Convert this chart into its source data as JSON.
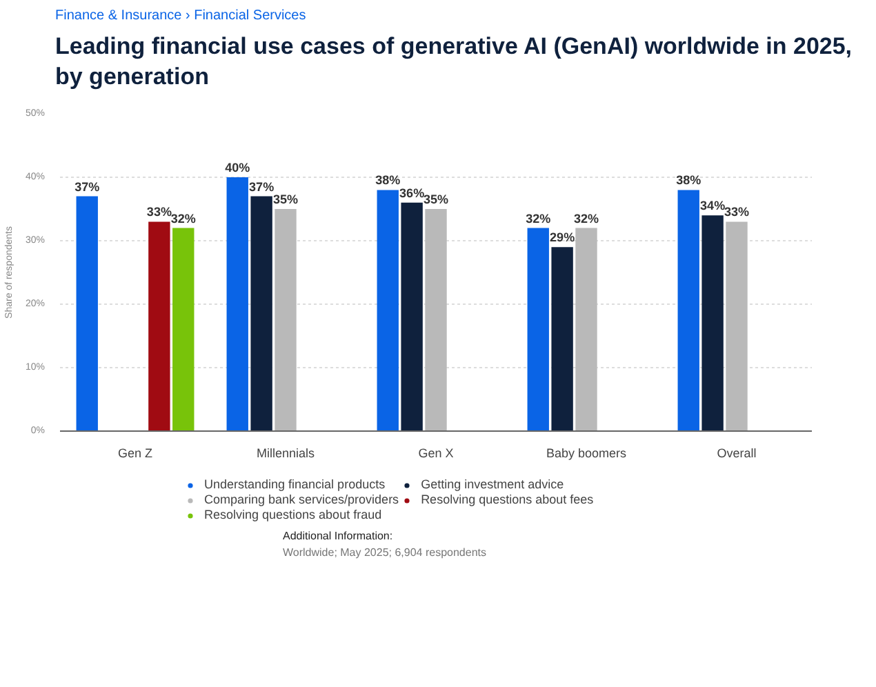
{
  "chart_data": {
    "type": "bar",
    "title": "Leading financial use cases of generative AI (GenAI) worldwide in 2025, by generation",
    "ylabel": "Share of respondents",
    "categories": [
      "Gen Z",
      "Millennials",
      "Gen X",
      "Baby boomers",
      "Overall"
    ],
    "series": [
      {
        "name": "Understanding financial products",
        "color": "#0a64e6",
        "values": [
          37,
          40,
          38,
          32,
          38
        ],
        "value_labels": [
          "37%",
          "40%",
          "38%",
          "32%",
          "38%"
        ]
      },
      {
        "name": "Getting investment advice",
        "color": "#0f213d",
        "values": [
          null,
          37,
          36,
          29,
          34
        ],
        "value_labels": [
          null,
          "37%",
          "36%",
          "29%",
          "34%"
        ]
      },
      {
        "name": "Comparing bank services/providers",
        "color": "#b9b9b9",
        "values": [
          null,
          35,
          35,
          32,
          33
        ],
        "value_labels": [
          null,
          "35%",
          "35%",
          "32%",
          "33%"
        ]
      },
      {
        "name": "Resolving questions about fees",
        "color": "#a00b12",
        "values": [
          33,
          null,
          null,
          null,
          null
        ],
        "value_labels": [
          "33%",
          null,
          null,
          null,
          null
        ]
      },
      {
        "name": "Resolving questions about fraud",
        "color": "#78c30a",
        "values": [
          32,
          null,
          null,
          null,
          null
        ],
        "value_labels": [
          "32%",
          null,
          null,
          null,
          null
        ]
      }
    ],
    "ylim": [
      0,
      50
    ],
    "yticks": [
      {
        "value": 0,
        "label": "0%"
      },
      {
        "value": 10,
        "label": "10%"
      },
      {
        "value": 20,
        "label": "20%"
      },
      {
        "value": 30,
        "label": "30%"
      },
      {
        "value": 40,
        "label": "40%"
      },
      {
        "value": 50,
        "label": "50%"
      }
    ],
    "grid": "y",
    "legend": "bottom",
    "annotations": [
      "Finance & Insurance › Financial Services",
      "Additional Information:",
      "Worldwide; May 2025; 6,904 respondents"
    ]
  }
}
